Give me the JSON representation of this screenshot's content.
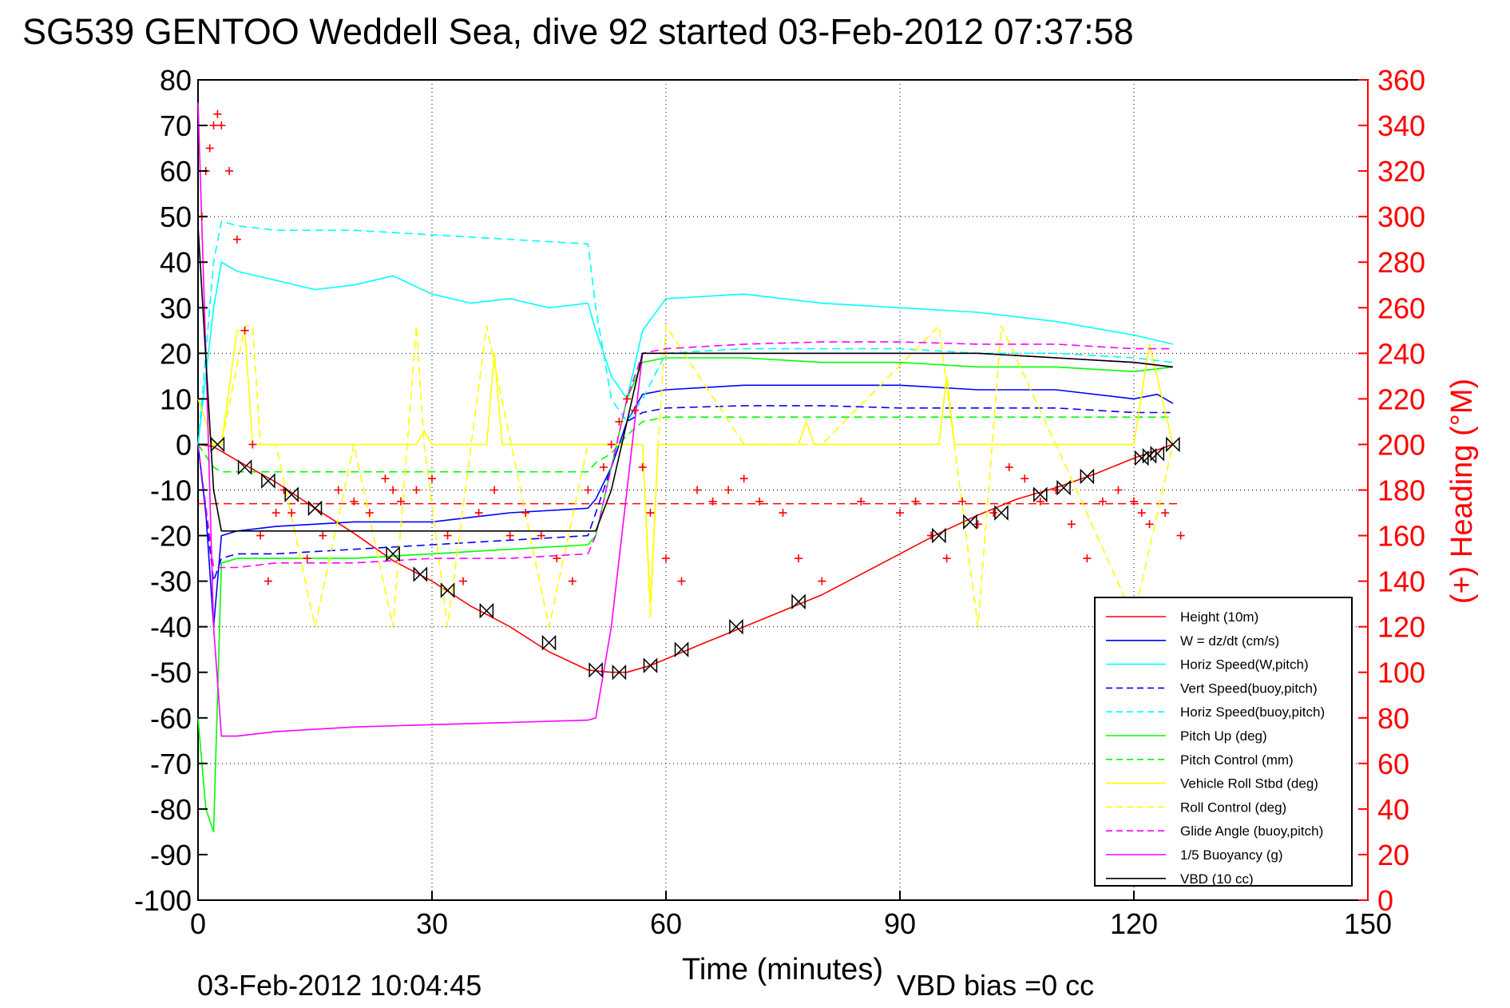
{
  "chart_data": {
    "type": "line",
    "title": "SG539 GENTOO Weddell Sea, dive 92 started 03-Feb-2012 07:37:58",
    "xlabel": "Time (minutes)",
    "ylabel_right": "(+) Heading (°M)",
    "footer_left": "03-Feb-2012 10:04:45",
    "footer_right": "VBD bias =0 cc",
    "xlim": [
      0,
      150
    ],
    "ylim": [
      -100,
      80
    ],
    "y2lim": [
      0,
      360
    ],
    "xticks": [
      0,
      30,
      60,
      90,
      120,
      150
    ],
    "yticks": [
      80,
      70,
      60,
      50,
      40,
      30,
      20,
      10,
      0,
      -10,
      -20,
      -30,
      -40,
      -50,
      -60,
      -70,
      -80,
      -90,
      -100
    ],
    "y2ticks": [
      360,
      340,
      320,
      300,
      280,
      260,
      240,
      220,
      200,
      180,
      160,
      140,
      120,
      100,
      80,
      60,
      40,
      20,
      0
    ],
    "grid": true,
    "legend_position": "bottom-right",
    "colors": {
      "red": "#ff0000",
      "blue": "#0000ff",
      "cyan": "#00ffff",
      "green": "#00ff00",
      "yellow": "#ffff00",
      "magenta": "#ff00ff",
      "black": "#000000"
    },
    "series": [
      {
        "name": "Height (10m)",
        "color": "#ff0000",
        "dash": "solid",
        "x": [
          0,
          1,
          2,
          5,
          10,
          15,
          20,
          25,
          30,
          35,
          40,
          45,
          50,
          53,
          55,
          58,
          65,
          70,
          75,
          80,
          85,
          90,
          95,
          100,
          105,
          110,
          115,
          120,
          125
        ],
        "y": [
          0,
          -0.2,
          -0.5,
          -3.5,
          -8.3,
          -14,
          -19.5,
          -25.5,
          -30,
          -35.5,
          -40,
          -45.5,
          -49.5,
          -50,
          -50,
          -48.5,
          -43.5,
          -40,
          -36.5,
          -33,
          -28.5,
          -24,
          -19.5,
          -15.5,
          -12,
          -9.5,
          -6.5,
          -3,
          0
        ]
      },
      {
        "name": "W = dz/dt (cm/s)",
        "color": "#0000ff",
        "dash": "solid",
        "x": [
          0,
          1,
          2,
          3,
          5,
          10,
          20,
          30,
          40,
          50,
          51,
          53,
          55,
          57,
          60,
          70,
          80,
          90,
          100,
          110,
          120,
          123,
          125
        ],
        "y": [
          0,
          -15,
          -40,
          -20,
          -19,
          -18,
          -17,
          -17,
          -15,
          -14,
          -12,
          -5,
          5,
          11,
          12,
          13,
          13,
          13,
          12,
          12,
          10,
          11,
          9
        ]
      },
      {
        "name": "Horiz Speed(W,pitch)",
        "color": "#00ffff",
        "dash": "solid",
        "x": [
          0,
          2,
          3,
          5,
          10,
          15,
          20,
          25,
          30,
          35,
          40,
          45,
          50,
          51,
          53,
          55,
          57,
          60,
          70,
          80,
          90,
          100,
          110,
          120,
          125
        ],
        "y": [
          0,
          30,
          40,
          38,
          36,
          34,
          35,
          37,
          33,
          31,
          32,
          30,
          31,
          25,
          15,
          10,
          25,
          32,
          33,
          31,
          30,
          29,
          27,
          24,
          22
        ]
      },
      {
        "name": "Vert Speed(buoy,pitch)",
        "color": "#0000ff",
        "dash": "dashed",
        "x": [
          0,
          2,
          3,
          5,
          10,
          20,
          30,
          40,
          50,
          51,
          53,
          55,
          57,
          60,
          70,
          80,
          90,
          100,
          110,
          120,
          125
        ],
        "y": [
          0,
          -30,
          -25,
          -24,
          -24,
          -23,
          -22,
          -21,
          -20,
          -15,
          -5,
          5,
          7,
          8,
          8.5,
          8.5,
          8,
          8,
          8,
          7,
          7
        ]
      },
      {
        "name": "Horiz Speed(buoy,pitch)",
        "color": "#00ffff",
        "dash": "dashed",
        "x": [
          0,
          2,
          3,
          5,
          10,
          20,
          30,
          40,
          50,
          51,
          53,
          55,
          57,
          60,
          70,
          80,
          90,
          100,
          110,
          120,
          125
        ],
        "y": [
          0,
          40,
          49,
          48,
          47,
          47,
          46,
          45,
          44,
          30,
          10,
          5,
          10,
          20,
          21,
          21,
          21,
          20,
          20,
          19,
          18
        ]
      },
      {
        "name": "Pitch Up (deg)",
        "color": "#00ff00",
        "dash": "solid",
        "x": [
          0,
          1,
          2,
          3,
          5,
          10,
          20,
          30,
          40,
          50,
          51,
          53,
          55,
          57,
          60,
          70,
          80,
          90,
          100,
          110,
          120,
          125
        ],
        "y": [
          -60,
          -80,
          -85,
          -26,
          -25,
          -25,
          -25,
          -24,
          -23,
          -22,
          -20,
          -5,
          10,
          18,
          19,
          19,
          18,
          18,
          17,
          17,
          16,
          17
        ]
      },
      {
        "name": "Pitch Control (mm)",
        "color": "#00ff00",
        "dash": "dashed",
        "x": [
          0,
          2,
          3,
          10,
          20,
          30,
          40,
          50,
          51,
          53,
          55,
          57,
          60,
          70,
          80,
          90,
          100,
          110,
          120,
          125
        ],
        "y": [
          0,
          -5,
          -6,
          -6,
          -6,
          -6,
          -6,
          -6,
          -4,
          -2,
          2,
          5,
          6,
          6,
          6,
          6,
          6,
          6,
          6,
          6
        ]
      },
      {
        "name": "Vehicle Roll Stbd (deg)",
        "color": "#ffff00",
        "dash": "solid",
        "x": [
          0,
          2,
          3,
          5,
          6,
          7,
          8,
          10,
          20,
          28,
          29,
          30,
          37,
          38,
          39,
          45,
          57,
          58,
          59,
          70,
          77,
          78,
          79,
          90,
          95,
          96,
          97,
          100,
          110,
          120,
          122,
          125
        ],
        "y": [
          10,
          0,
          0,
          25,
          25,
          0,
          0,
          0,
          0,
          0,
          3,
          0,
          0,
          20,
          0,
          0,
          0,
          -35,
          0,
          0,
          0,
          5,
          0,
          0,
          0,
          15,
          0,
          0,
          0,
          0,
          22,
          0
        ]
      },
      {
        "name": "Roll Control (deg)",
        "color": "#ffff00",
        "dash": "dashed",
        "x": [
          0,
          3,
          6,
          7,
          8,
          10,
          15,
          20,
          25,
          28,
          29,
          32,
          37,
          45,
          50,
          57,
          58,
          59,
          60,
          70,
          80,
          95,
          100,
          103,
          110,
          120,
          125
        ],
        "y": [
          0,
          0,
          26,
          26,
          0,
          0,
          -40,
          0,
          -40,
          26,
          0,
          -40,
          26,
          -40,
          0,
          0,
          -38,
          0,
          26,
          0,
          0,
          26,
          -40,
          26,
          0,
          -38,
          0
        ]
      },
      {
        "name": "Glide Angle (buoy,pitch)",
        "color": "#ff00ff",
        "dash": "dashed",
        "x": [
          0,
          2,
          3,
          5,
          10,
          20,
          30,
          40,
          50,
          51,
          53,
          55,
          57,
          60,
          70,
          80,
          90,
          100,
          110,
          120,
          125
        ],
        "y": [
          0,
          -27,
          -27,
          -27,
          -26,
          -26,
          -25,
          -25,
          -24,
          -20,
          -5,
          10,
          20,
          21,
          22,
          22.5,
          22.5,
          22,
          22,
          21,
          21
        ]
      },
      {
        "name": "1/5 Buoyancy (g)",
        "color": "#ff00ff",
        "dash": "solid",
        "x": [
          0,
          1,
          2,
          3,
          5,
          10,
          20,
          30,
          40,
          50,
          51,
          53,
          55,
          57,
          60,
          70,
          80,
          90,
          100,
          110,
          120,
          125
        ],
        "y": [
          75,
          20,
          -40,
          -64,
          -64,
          -63,
          -62,
          -61.5,
          -61,
          -60.5,
          -60,
          -40,
          -10,
          20,
          20,
          20,
          20,
          20,
          20,
          19,
          18,
          17
        ]
      },
      {
        "name": "VBD (10 cc)",
        "color": "#000000",
        "dash": "solid",
        "x": [
          0,
          2,
          3,
          10,
          20,
          30,
          40,
          50,
          51,
          53,
          55,
          57,
          60,
          70,
          80,
          90,
          100,
          110,
          120,
          125
        ],
        "y": [
          48,
          -10,
          -19,
          -19,
          -19,
          -19,
          -19,
          -19,
          -19,
          -10,
          5,
          20,
          20,
          20,
          20,
          20,
          20,
          19,
          18,
          17
        ]
      }
    ],
    "heading_markers": {
      "name": "Heading",
      "color": "#ff0000",
      "marker": "+",
      "axis": "right",
      "x": [
        0.5,
        1,
        1.5,
        2,
        2.5,
        3,
        4,
        5,
        6,
        7,
        8,
        9,
        10,
        11,
        12,
        14,
        16,
        18,
        20,
        22,
        24,
        25,
        26,
        28,
        30,
        32,
        34,
        36,
        38,
        40,
        42,
        44,
        46,
        48,
        50,
        52,
        53,
        54,
        55,
        56,
        57,
        58,
        60,
        62,
        64,
        66,
        68,
        70,
        72,
        75,
        77,
        80,
        85,
        90,
        92,
        94,
        96,
        98,
        100,
        102,
        104,
        106,
        108,
        110,
        112,
        114,
        116,
        118,
        120,
        121,
        122,
        124,
        126
      ],
      "y": [
        300,
        320,
        330,
        340,
        345,
        340,
        320,
        290,
        250,
        200,
        160,
        140,
        170,
        180,
        170,
        150,
        160,
        180,
        175,
        170,
        185,
        180,
        175,
        180,
        185,
        160,
        140,
        170,
        180,
        160,
        170,
        160,
        150,
        140,
        180,
        190,
        200,
        210,
        220,
        215,
        190,
        170,
        150,
        140,
        180,
        175,
        180,
        185,
        175,
        170,
        150,
        140,
        175,
        170,
        175,
        160,
        150,
        175,
        165,
        170,
        190,
        185,
        175,
        180,
        165,
        150,
        175,
        180,
        175,
        170,
        165,
        170,
        160
      ]
    },
    "heading_mean": {
      "color": "#ff0000",
      "dash": "dashed",
      "value_deg": 174
    },
    "vbd_markers": {
      "marker": "bowtie",
      "x": [
        2.5,
        6,
        9,
        12,
        15,
        25,
        28.5,
        32,
        37,
        45,
        51,
        54,
        58,
        62,
        69,
        77,
        95,
        99,
        103,
        108,
        111,
        114,
        121,
        122,
        123,
        125
      ],
      "y": [
        0,
        -5,
        -8,
        -11,
        -14,
        -24,
        -28.5,
        -32,
        -36.5,
        -43.5,
        -49.5,
        -50,
        -48.5,
        -45,
        -40,
        -34.5,
        -20,
        -17,
        -15,
        -11,
        -9.5,
        -7,
        -3,
        -2.5,
        -2,
        0
      ]
    }
  }
}
